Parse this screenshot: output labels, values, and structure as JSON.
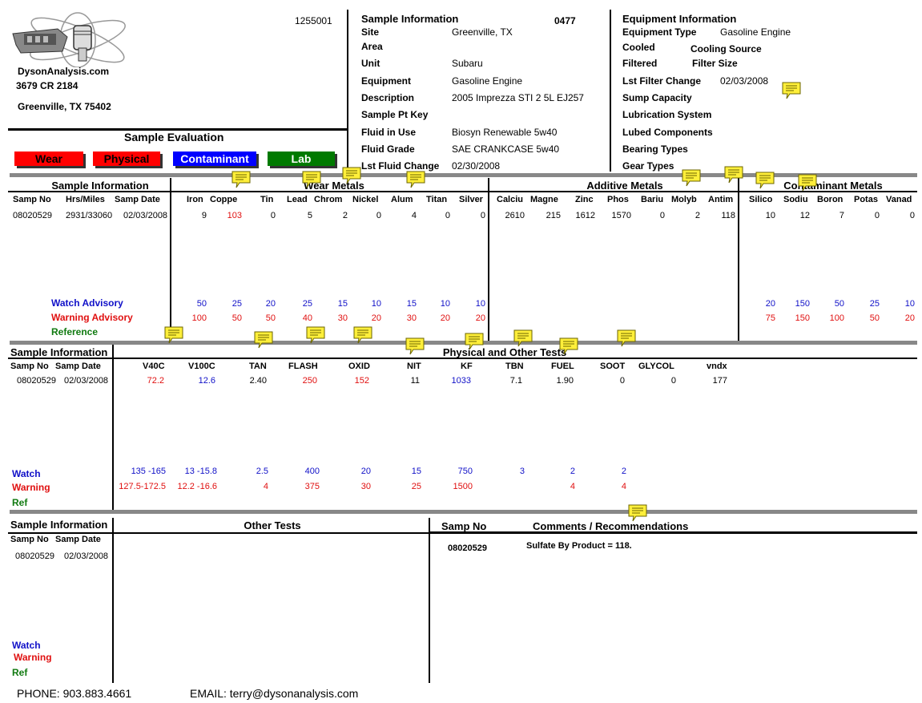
{
  "header": {
    "report_id": "1255001",
    "company": {
      "name": "DysonAnalysis.com",
      "address1": "3679 CR 2184",
      "address2": "Greenville, TX 75402"
    },
    "sample_info": {
      "title": "Sample Information",
      "number": "0477",
      "fields": [
        {
          "label": "Site",
          "value": "Greenville, TX"
        },
        {
          "label": "Area",
          "value": ""
        },
        {
          "label": "Unit",
          "value": "Subaru"
        },
        {
          "label": "Equipment",
          "value": "Gasoline Engine"
        },
        {
          "label": "Description",
          "value": "2005 Imprezza STI 2 5L EJ257"
        },
        {
          "label": "Sample Pt Key",
          "value": ""
        },
        {
          "label": "Fluid in Use",
          "value": "Biosyn Renewable 5w40"
        },
        {
          "label": "Fluid Grade",
          "value": "SAE CRANKCASE 5w40"
        },
        {
          "label": "Lst Fluid Change",
          "value": "02/30/2008"
        }
      ]
    },
    "equipment_info": {
      "title": "Equipment Information",
      "fields": [
        {
          "label": "Equipment Type",
          "value": "Gasoline Engine"
        },
        {
          "label": "Cooled",
          "value": "Cooling Source"
        },
        {
          "label": "Filtered",
          "value": "Filter Size"
        },
        {
          "label": "Lst Filter Change",
          "value": "02/03/2008"
        },
        {
          "label": "Sump Capacity",
          "value": ""
        },
        {
          "label": "Lubrication System",
          "value": ""
        },
        {
          "label": "Lubed Components",
          "value": ""
        },
        {
          "label": "Bearing Types",
          "value": ""
        },
        {
          "label": "Gear Types",
          "value": ""
        }
      ]
    }
  },
  "evaluation": {
    "title": "Sample Evaluation",
    "badges": [
      {
        "label": "Wear",
        "color": "#ff0000"
      },
      {
        "label": "Physical",
        "color": "#ff0000"
      },
      {
        "label": "Contaminant",
        "color": "#0000ff"
      },
      {
        "label": "Lab",
        "color": "#007a00"
      }
    ]
  },
  "metals": {
    "section_sample": "Sample Information",
    "section_wear": "Wear Metals",
    "section_additive": "Additive Metals",
    "section_contaminant": "Contaminant Metals",
    "info_columns": [
      "Samp No",
      "Hrs/Miles",
      "Samp Date"
    ],
    "row": {
      "samp_no": "08020529",
      "hrs_miles": "2931/33060",
      "samp_date": "02/03/2008"
    },
    "wear": [
      {
        "name": "Iron",
        "value": "9",
        "watch": "50",
        "warning": "100",
        "color": "#000"
      },
      {
        "name": "Coppe",
        "value": "103",
        "watch": "25",
        "warning": "50",
        "color": "#e01010"
      },
      {
        "name": "Tin",
        "value": "0",
        "watch": "20",
        "warning": "50",
        "color": "#000"
      },
      {
        "name": "Lead",
        "value": "5",
        "watch": "25",
        "warning": "40",
        "color": "#000"
      },
      {
        "name": "Chrom",
        "value": "2",
        "watch": "15",
        "warning": "30",
        "color": "#000"
      },
      {
        "name": "Nickel",
        "value": "0",
        "watch": "10",
        "warning": "20",
        "color": "#000"
      },
      {
        "name": "Alum",
        "value": "4",
        "watch": "15",
        "warning": "30",
        "color": "#000"
      },
      {
        "name": "Titan",
        "value": "0",
        "watch": "10",
        "warning": "20",
        "color": "#000"
      },
      {
        "name": "Silver",
        "value": "0",
        "watch": "10",
        "warning": "20",
        "color": "#000"
      }
    ],
    "additive": [
      {
        "name": "Calciu",
        "value": "2610"
      },
      {
        "name": "Magne",
        "value": "215"
      },
      {
        "name": "Zinc",
        "value": "1612"
      },
      {
        "name": "Phos",
        "value": "1570"
      },
      {
        "name": "Bariu",
        "value": "0"
      },
      {
        "name": "Molyb",
        "value": "2"
      },
      {
        "name": "Antim",
        "value": "118"
      }
    ],
    "contaminant": [
      {
        "name": "Silico",
        "value": "10",
        "watch": "20",
        "warning": "75"
      },
      {
        "name": "Sodiu",
        "value": "12",
        "watch": "150",
        "warning": "150"
      },
      {
        "name": "Boron",
        "value": "7",
        "watch": "50",
        "warning": "100"
      },
      {
        "name": "Potas",
        "value": "0",
        "watch": "25",
        "warning": "50"
      },
      {
        "name": "Vanad",
        "value": "0",
        "watch": "10",
        "warning": "20"
      }
    ],
    "watch_label": "Watch Advisory",
    "warning_label": "Warning Advisory",
    "reference_label": "Reference"
  },
  "physical": {
    "section_sample": "Sample Information",
    "section_title": "Physical and Other Tests",
    "info_columns": [
      "Samp No",
      "Samp Date"
    ],
    "row": {
      "samp_no": "08020529",
      "samp_date": "02/03/2008"
    },
    "columns": [
      {
        "name": "V40C",
        "value": "72.2",
        "watch": "135  -165",
        "warning": "127.5-172.5",
        "color": "#e01010"
      },
      {
        "name": "V100C",
        "value": "12.6",
        "watch": "13   -15.8",
        "warning": "12.2 -16.6",
        "color": "#1010c8"
      },
      {
        "name": "TAN",
        "value": "2.40",
        "watch": "2.5",
        "warning": "4",
        "color": "#000"
      },
      {
        "name": "FLASH",
        "value": "250",
        "watch": "400",
        "warning": "375",
        "color": "#e01010"
      },
      {
        "name": "OXID",
        "value": "152",
        "watch": "20",
        "warning": "30",
        "color": "#e01010"
      },
      {
        "name": "NIT",
        "value": "11",
        "watch": "15",
        "warning": "25",
        "color": "#000"
      },
      {
        "name": "KF",
        "value": "1033",
        "watch": "750",
        "warning": "1500",
        "color": "#1010c8"
      },
      {
        "name": "TBN",
        "value": "7.1",
        "watch": "3",
        "warning": "",
        "color": "#000"
      },
      {
        "name": "FUEL",
        "value": "1.90",
        "watch": "2",
        "warning": "4",
        "color": "#000"
      },
      {
        "name": "SOOT",
        "value": "0",
        "watch": "2",
        "warning": "4",
        "color": "#000"
      },
      {
        "name": "GLYCOL",
        "value": "0",
        "watch": "",
        "warning": "",
        "color": "#000"
      },
      {
        "name": "vndx",
        "value": "177",
        "watch": "",
        "warning": "",
        "color": "#000"
      }
    ],
    "watch_label": "Watch",
    "warning_label": "Warning",
    "ref_label": "Ref"
  },
  "other": {
    "section_sample": "Sample Information",
    "section_title": "Other Tests",
    "info_columns": [
      "Samp No",
      "Samp Date"
    ],
    "row": {
      "samp_no": "08020529",
      "samp_date": "02/03/2008"
    },
    "watch_label": "Watch",
    "warning_label": "Warning",
    "ref_label": "Ref",
    "comments_samp_header": "Samp No",
    "comments_title": "Comments / Recommendations",
    "comment_samp_no": "08020529",
    "comment_text": "Sulfate By Product = 118."
  },
  "footer": {
    "phone": "PHONE:  903.883.4661",
    "email": "EMAIL:  terry@dysonanalysis.com"
  }
}
